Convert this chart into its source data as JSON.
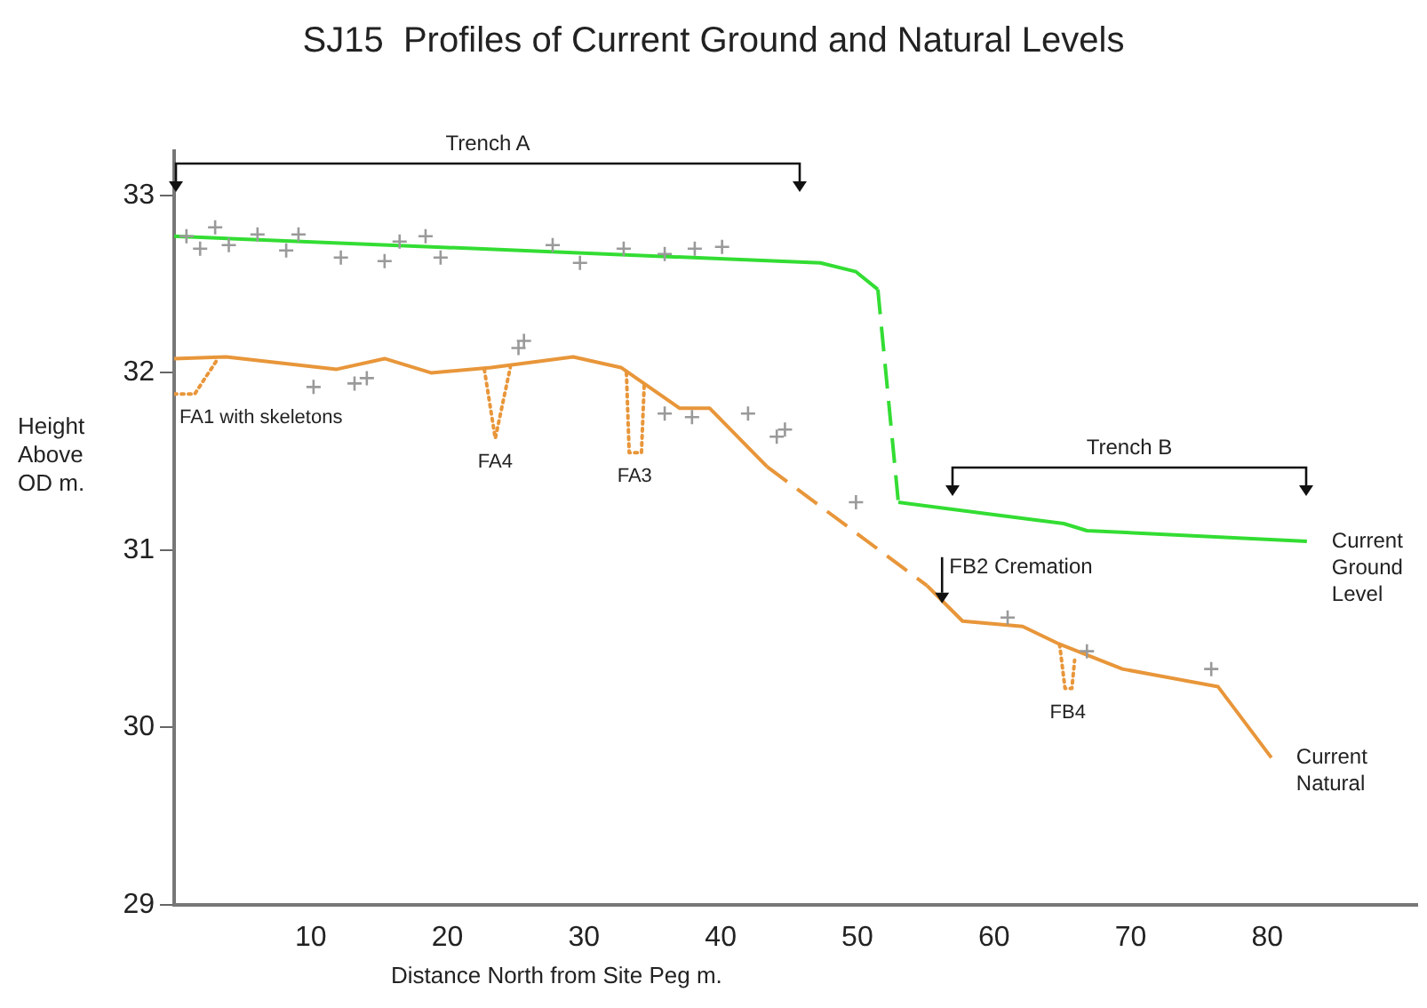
{
  "chart_data": {
    "type": "line",
    "title": "SJ15  Profiles of Current Ground and Natural Levels",
    "xlabel": "Distance North from Site Peg m.",
    "ylabel": "Height Above OD m.",
    "xlim": [
      0,
      91
    ],
    "xticks": [
      10,
      20,
      30,
      40,
      50,
      60,
      70,
      80
    ],
    "ylim": [
      29,
      33.25
    ],
    "yticks": [
      29,
      30,
      31,
      32,
      33
    ],
    "series": [
      {
        "type": "line",
        "color": "#33dd33",
        "line_style": "solid",
        "x": [
          0,
          47.3,
          49.9,
          51.5
        ],
        "values": [
          32.77,
          32.62,
          32.57,
          32.47
        ]
      },
      {
        "type": "line",
        "color": "#33dd33",
        "line_style": "dashed",
        "x": [
          51.5,
          53.0
        ],
        "values": [
          32.47,
          31.27
        ]
      },
      {
        "name": "Current Ground Level",
        "type": "line",
        "color": "#33dd33",
        "line_style": "solid",
        "x": [
          53.0,
          60,
          65.1,
          66.8,
          82.9
        ],
        "values": [
          31.27,
          31.2,
          31.15,
          31.11,
          31.05
        ]
      },
      {
        "type": "line",
        "color": "#e8963a",
        "line_style": "solid",
        "x": [
          0,
          3.8,
          11.9,
          15.4,
          18.8,
          23.2,
          29.2,
          32.7,
          37,
          39.2,
          43.4
        ],
        "values": [
          32.08,
          32.09,
          32.02,
          32.08,
          32.0,
          32.03,
          32.09,
          32.03,
          31.8,
          31.8,
          31.47
        ]
      },
      {
        "type": "line",
        "color": "#e8963a",
        "line_style": "dashed",
        "x": [
          43.4,
          55.1
        ],
        "values": [
          31.47,
          30.8
        ]
      },
      {
        "name": "Current Natural",
        "type": "line",
        "color": "#e8963a",
        "line_style": "solid",
        "x": [
          55.1,
          57.7,
          62.1,
          64.8,
          69.4,
          76.4,
          80.3
        ],
        "values": [
          30.8,
          30.6,
          30.57,
          30.47,
          30.33,
          30.23,
          29.83
        ]
      },
      {
        "type": "line",
        "color": "#e8963a",
        "line_style": "dotted",
        "x": [
          0,
          1.5,
          3.2
        ],
        "values": [
          31.88,
          31.88,
          32.08
        ]
      },
      {
        "type": "line",
        "color": "#e8963a",
        "line_style": "dotted",
        "x": [
          22.7,
          23.5,
          24.6
        ],
        "values": [
          32.02,
          31.63,
          32.03
        ]
      },
      {
        "type": "line",
        "color": "#e8963a",
        "line_style": "dotted",
        "x": [
          33.1,
          33.3,
          34.2,
          34.4
        ],
        "values": [
          32.0,
          31.55,
          31.55,
          31.93
        ]
      },
      {
        "type": "line",
        "color": "#e8963a",
        "line_style": "dotted",
        "x": [
          64.8,
          65.2,
          65.7,
          65.9
        ],
        "values": [
          30.47,
          30.22,
          30.22,
          30.38
        ]
      },
      {
        "type": "scatter",
        "color": "#9a9a9a",
        "marker": "cross",
        "x": [
          0.9,
          3.0,
          1.9,
          4.0,
          6.1,
          8.2,
          9.1,
          12.2,
          15.4,
          16.5,
          18.4,
          19.5,
          27.7,
          29.7,
          32.9,
          35.9,
          38.1,
          40.1,
          10.2,
          13.2,
          14.1,
          25.2,
          25.6,
          35.9,
          37.9,
          42.0,
          44.1,
          44.7,
          49.9,
          61.0,
          66.8,
          75.9
        ],
        "values": [
          32.77,
          32.82,
          32.7,
          32.72,
          32.78,
          32.69,
          32.78,
          32.65,
          32.63,
          32.74,
          32.77,
          32.65,
          32.72,
          32.62,
          32.7,
          32.67,
          32.7,
          32.71,
          31.92,
          31.94,
          31.97,
          32.14,
          32.18,
          31.77,
          31.75,
          31.77,
          31.64,
          31.68,
          31.27,
          30.62,
          30.43,
          30.33
        ]
      }
    ],
    "annotations": [
      "Trench A",
      "Trench B",
      {
        "text": "FA1 with skeletons",
        "x": 1.5,
        "y": 31.88
      },
      {
        "text": "FA4",
        "x": 23.5,
        "y": 31.63
      },
      {
        "text": "FA3",
        "x": 33.7,
        "y": 31.55
      },
      {
        "text": "FB4",
        "x": 65.4,
        "y": 30.22
      },
      {
        "text": "FB2 Cremation",
        "x": 56.2,
        "y": 30.7
      }
    ]
  }
}
